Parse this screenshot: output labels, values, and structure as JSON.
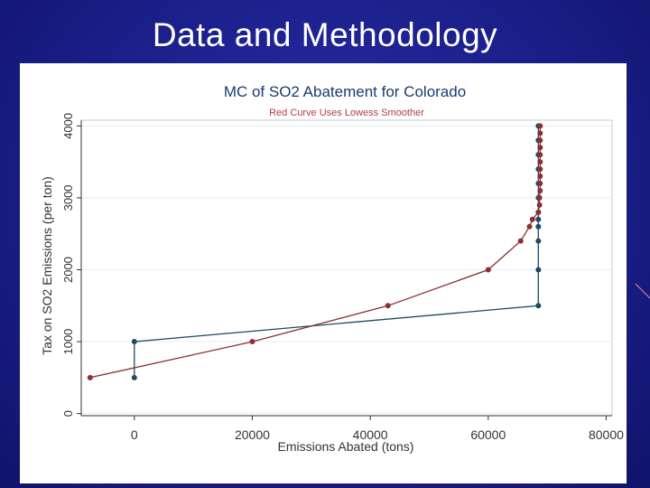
{
  "slide": {
    "title": "Data and Methodology"
  },
  "chart_data": {
    "type": "line",
    "title": "MC of SO2 Abatement for Colorado",
    "subtitle": "Red Curve Uses Lowess Smoother",
    "xlabel": "Emissions Abated (tons)",
    "ylabel": "Tax on SO2 Emissions (per ton)",
    "xlim": [
      -9000,
      81000
    ],
    "ylim": [
      -30,
      4080
    ],
    "xticks": [
      0,
      20000,
      40000,
      60000,
      80000
    ],
    "yticks": [
      0,
      1000,
      2000,
      3000,
      4000
    ],
    "grid": true,
    "colors": {
      "blue": "#1d4a63",
      "red": "#8c2e33",
      "axis": "#333333",
      "title": "#1c3a6e",
      "subtitle": "#b04040",
      "grid": "#e6eef3"
    },
    "series": [
      {
        "key": "blue",
        "points": [
          [
            0,
            500
          ],
          [
            0,
            1000
          ],
          [
            68500,
            1500
          ],
          [
            68500,
            2000
          ],
          [
            68500,
            2400
          ],
          [
            68500,
            2600
          ],
          [
            68500,
            2700
          ],
          [
            68500,
            2800
          ],
          [
            68500,
            3000
          ],
          [
            68500,
            3200
          ],
          [
            68500,
            3400
          ],
          [
            68500,
            3600
          ],
          [
            68500,
            3800
          ],
          [
            68500,
            4000
          ]
        ]
      },
      {
        "key": "red",
        "points": [
          [
            -7500,
            500
          ],
          [
            20000,
            1000
          ],
          [
            43000,
            1500
          ],
          [
            60000,
            2000
          ],
          [
            65500,
            2400
          ],
          [
            67000,
            2600
          ],
          [
            67500,
            2700
          ],
          [
            68500,
            2800
          ],
          [
            68700,
            2900
          ],
          [
            68700,
            3000
          ],
          [
            68800,
            3100
          ],
          [
            68800,
            3200
          ],
          [
            68800,
            3300
          ],
          [
            68800,
            3400
          ],
          [
            68800,
            3500
          ],
          [
            68800,
            3600
          ],
          [
            68800,
            3700
          ],
          [
            68800,
            3800
          ],
          [
            68800,
            3900
          ],
          [
            68800,
            4000
          ]
        ]
      }
    ]
  }
}
